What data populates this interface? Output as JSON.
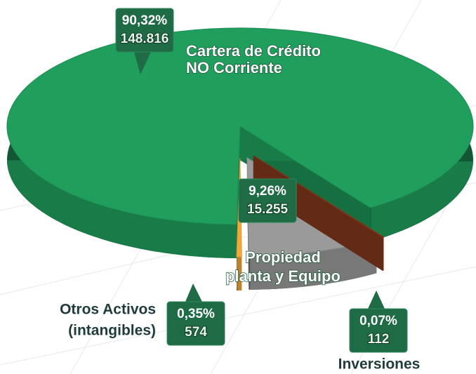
{
  "chart_data": {
    "type": "pie",
    "categories": [
      [
        "Cartera de Crédito",
        "NO Corriente"
      ],
      [
        "Propiedad",
        "planta y Equipo"
      ],
      [
        "Otros Activos",
        "(intangibles)"
      ],
      [
        "Inversiones"
      ]
    ],
    "values": [
      90.32,
      9.26,
      0.35,
      0.07
    ],
    "value_labels": [
      "90,32%",
      "9,26%",
      "0,35%",
      "0,07%"
    ],
    "amounts": [
      148816,
      15255,
      574,
      112
    ],
    "amount_labels": [
      "148.816",
      "15.255",
      "574",
      "112"
    ],
    "colors": [
      "#1f9e5c",
      "#9a9a9a",
      "#f2a93a",
      "#8e3c1e"
    ]
  }
}
